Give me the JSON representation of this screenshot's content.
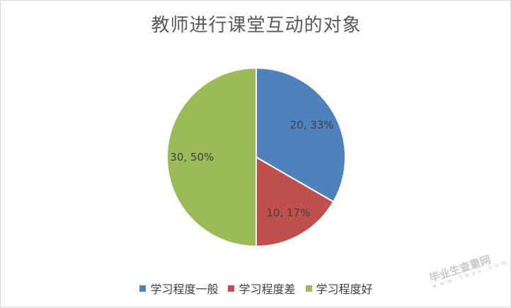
{
  "chart_data": {
    "type": "pie",
    "title": "教师进行课堂互动的对象",
    "categories": [
      "学习程度一般",
      "学习程度差",
      "学习程度好"
    ],
    "values": [
      20,
      10,
      30
    ],
    "data_labels": [
      "20, 33%",
      "10, 17%",
      "30, 50%"
    ],
    "colors": [
      "#4F81BD",
      "#C0504D",
      "#9BBB59"
    ],
    "legend_position": "bottom"
  },
  "watermark": {
    "text": "毕业生查重网",
    "sub": "w w w . s b v v . c o m"
  }
}
